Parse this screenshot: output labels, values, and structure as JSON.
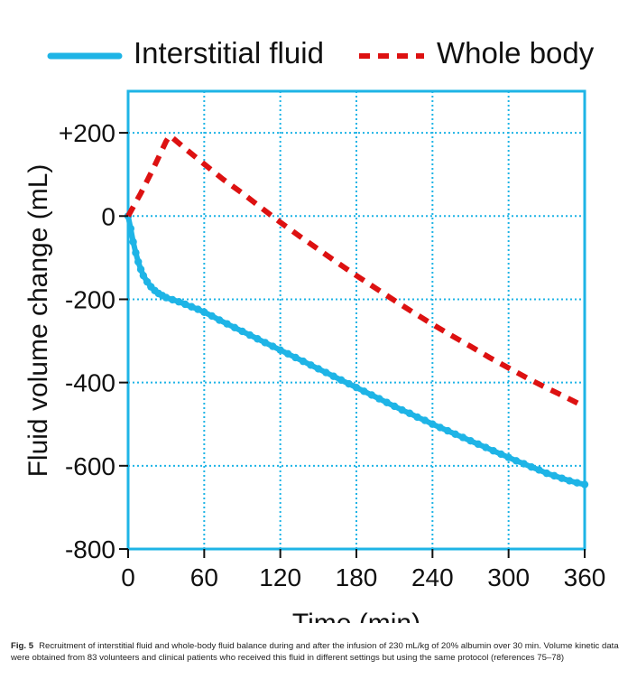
{
  "chart_data": {
    "type": "line",
    "xlabel": "Time (min)",
    "ylabel": "Fluid volume change (mL)",
    "xlim": [
      0,
      360
    ],
    "ylim": [
      -800,
      300
    ],
    "xticks": [
      0,
      60,
      120,
      180,
      240,
      300,
      360
    ],
    "xtick_labels": [
      "0",
      "60",
      "120",
      "180",
      "240",
      "300",
      "360"
    ],
    "yticks": [
      200,
      0,
      -200,
      -400,
      -600,
      -800
    ],
    "ytick_labels": [
      "+200",
      "0",
      "-200",
      "-400",
      "-600",
      "-800"
    ],
    "grid": true,
    "legend_position": "top",
    "series": [
      {
        "name": "Interstitial fluid",
        "color": "#1eb4e6",
        "style": "solid",
        "x": [
          0,
          2,
          4,
          6,
          8,
          10,
          12,
          15,
          18,
          21,
          24,
          27,
          30,
          35,
          40,
          45,
          50,
          55,
          60,
          66,
          72,
          78,
          84,
          90,
          96,
          102,
          108,
          114,
          120,
          126,
          132,
          138,
          144,
          150,
          156,
          162,
          168,
          174,
          180,
          186,
          192,
          198,
          204,
          210,
          216,
          222,
          228,
          234,
          240,
          246,
          252,
          258,
          264,
          270,
          276,
          282,
          288,
          294,
          300,
          306,
          312,
          318,
          324,
          330,
          336,
          342,
          348,
          354,
          360
        ],
        "y": [
          0,
          -30,
          -62,
          -88,
          -110,
          -128,
          -143,
          -158,
          -170,
          -179,
          -186,
          -191,
          -196,
          -201,
          -206,
          -212,
          -218,
          -224,
          -231,
          -240,
          -250,
          -259,
          -268,
          -277,
          -286,
          -295,
          -304,
          -313,
          -322,
          -331,
          -340,
          -349,
          -358,
          -367,
          -376,
          -385,
          -394,
          -403,
          -412,
          -421,
          -430,
          -439,
          -448,
          -457,
          -466,
          -474,
          -483,
          -491,
          -500,
          -508,
          -516,
          -524,
          -532,
          -540,
          -548,
          -556,
          -564,
          -572,
          -580,
          -588,
          -595,
          -603,
          -610,
          -618,
          -624,
          -630,
          -636,
          -641,
          -645
        ]
      },
      {
        "name": "Whole body",
        "color": "#dd1111",
        "style": "dashed",
        "x": [
          0,
          10,
          20,
          30,
          33,
          45,
          60,
          75,
          90,
          105,
          120,
          135,
          150,
          165,
          180,
          195,
          210,
          225,
          240,
          255,
          270,
          285,
          300,
          315,
          330,
          345,
          360
        ],
        "y": [
          0,
          55,
          115,
          180,
          193,
          162,
          125,
          88,
          55,
          20,
          -15,
          -48,
          -80,
          -112,
          -143,
          -173,
          -203,
          -232,
          -260,
          -287,
          -313,
          -340,
          -365,
          -390,
          -413,
          -435,
          -458
        ]
      }
    ]
  },
  "caption": {
    "label": "Fig. 5",
    "text": "Recruitment of interstitial fluid and whole-body fluid balance during and after the infusion of 230 mL/kg of 20% albumin over 30 min. Volume kinetic data were obtained from 83 volunteers and clinical patients who received this fluid in different settings but using the same protocol (references 75–78)"
  }
}
